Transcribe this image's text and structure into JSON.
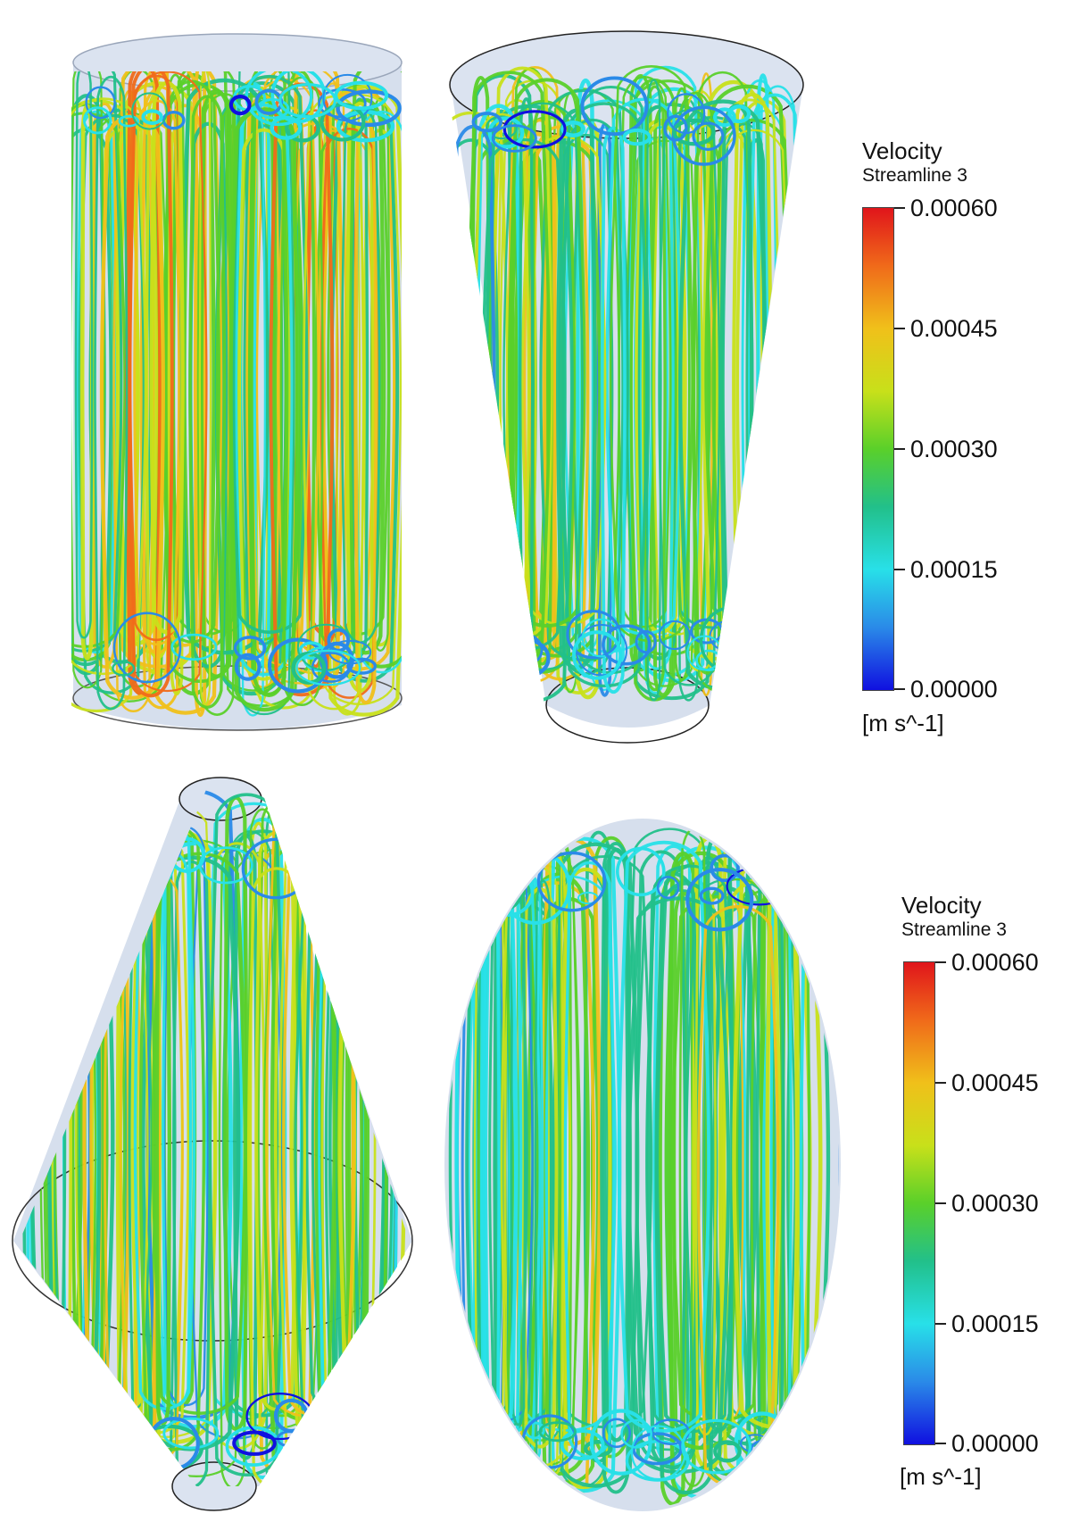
{
  "legends": [
    {
      "title": "Velocity",
      "subtitle": "Streamline 3",
      "ticks": [
        "0.00060",
        "0.00045",
        "0.00030",
        "0.00015",
        "0.00000"
      ],
      "unit": "[m s^-1]",
      "range": [
        0,
        0.0006
      ]
    },
    {
      "title": "Velocity",
      "subtitle": "Streamline 3",
      "ticks": [
        "0.00060",
        "0.00045",
        "0.00030",
        "0.00015",
        "0.00000"
      ],
      "unit": "[m s^-1]",
      "range": [
        0,
        0.0006
      ]
    }
  ],
  "colormap": [
    "#1010e0",
    "#2a8ae8",
    "#28e0e8",
    "#22c08a",
    "#5ad02a",
    "#c8e01a",
    "#f0c01a",
    "#f06a1a",
    "#e0151b"
  ],
  "vessel_fill": "#cfd9ea",
  "panels": [
    {
      "shape": "cylinder"
    },
    {
      "shape": "inverted-cone"
    },
    {
      "shape": "double-cone"
    },
    {
      "shape": "ellipsoid"
    }
  ]
}
